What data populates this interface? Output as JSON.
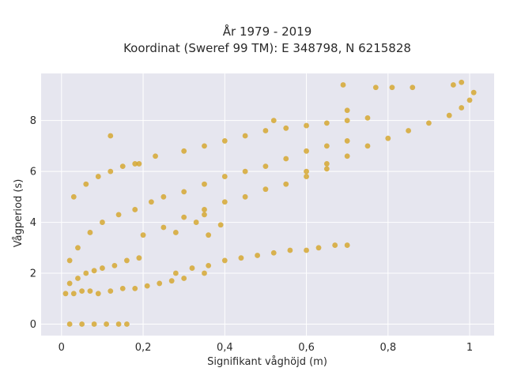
{
  "chart_data": {
    "type": "scatter",
    "title": "År 1979 - 2019",
    "subtitle": "Koordinat (Sweref 99 TM): E 348798, N 6215828",
    "xlabel": "Signifikant våghöjd (m)",
    "ylabel": "Vågperiod (s)",
    "xlim": [
      -0.05,
      1.06
    ],
    "ylim": [
      -0.45,
      9.85
    ],
    "x_ticks": [
      0,
      0.2,
      0.4,
      0.6,
      0.8,
      1.0
    ],
    "x_tick_labels": [
      "0",
      "0,2",
      "0,4",
      "0,6",
      "0,8",
      "1"
    ],
    "y_ticks": [
      0,
      2,
      4,
      6,
      8
    ],
    "y_tick_labels": [
      "0",
      "2",
      "4",
      "6",
      "8"
    ],
    "grid": true,
    "legend": "none",
    "colors": {
      "points": "#d4a220",
      "plot_background": "#e6e6ef",
      "grid": "#ffffff"
    },
    "x": [
      0.02,
      0.05,
      0.08,
      0.11,
      0.14,
      0.16,
      0.01,
      0.03,
      0.05,
      0.07,
      0.09,
      0.12,
      0.15,
      0.18,
      0.21,
      0.24,
      0.27,
      0.3,
      0.02,
      0.04,
      0.06,
      0.08,
      0.1,
      0.13,
      0.16,
      0.19,
      0.28,
      0.32,
      0.36,
      0.4,
      0.44,
      0.48,
      0.52,
      0.56,
      0.6,
      0.63,
      0.67,
      0.7,
      0.02,
      0.04,
      0.07,
      0.1,
      0.14,
      0.18,
      0.22,
      0.03,
      0.06,
      0.09,
      0.12,
      0.15,
      0.19,
      0.23,
      0.25,
      0.3,
      0.35,
      0.4,
      0.45,
      0.5,
      0.55,
      0.6,
      0.65,
      0.7,
      0.2,
      0.25,
      0.3,
      0.35,
      0.4,
      0.45,
      0.5,
      0.55,
      0.6,
      0.65,
      0.3,
      0.35,
      0.4,
      0.45,
      0.5,
      0.55,
      0.6,
      0.65,
      0.7,
      0.75,
      0.6,
      0.65,
      0.7,
      0.75,
      0.8,
      0.85,
      0.9,
      0.95,
      0.98,
      1.0,
      1.01,
      0.12,
      0.18,
      0.28,
      0.33,
      0.35,
      0.52,
      0.69,
      0.77,
      0.81,
      0.86,
      0.96,
      0.98,
      0.36,
      0.39,
      0.7,
      0.35
    ],
    "y": [
      0.0,
      0.0,
      0.0,
      0.0,
      0.0,
      0.0,
      1.2,
      1.2,
      1.3,
      1.3,
      1.2,
      1.3,
      1.4,
      1.4,
      1.5,
      1.6,
      1.7,
      1.8,
      1.6,
      1.8,
      2.0,
      2.1,
      2.2,
      2.3,
      2.5,
      2.6,
      2.0,
      2.2,
      2.3,
      2.5,
      2.6,
      2.7,
      2.8,
      2.9,
      2.9,
      3.0,
      3.1,
      3.1,
      2.5,
      3.0,
      3.6,
      4.0,
      4.3,
      4.5,
      4.8,
      5.0,
      5.5,
      5.8,
      6.0,
      6.2,
      6.3,
      6.6,
      5.0,
      5.2,
      5.5,
      5.8,
      6.0,
      6.2,
      6.5,
      6.8,
      7.0,
      7.2,
      3.5,
      3.8,
      4.2,
      4.5,
      4.8,
      5.0,
      5.3,
      5.5,
      5.8,
      6.1,
      6.8,
      7.0,
      7.2,
      7.4,
      7.6,
      7.7,
      7.8,
      7.9,
      8.0,
      8.1,
      6.0,
      6.3,
      6.6,
      7.0,
      7.3,
      7.6,
      7.9,
      8.2,
      8.5,
      8.8,
      9.1,
      7.4,
      6.3,
      3.6,
      4.0,
      4.3,
      8.0,
      9.4,
      9.3,
      9.3,
      9.3,
      9.4,
      9.5,
      3.5,
      3.9,
      8.4,
      2.0
    ]
  }
}
